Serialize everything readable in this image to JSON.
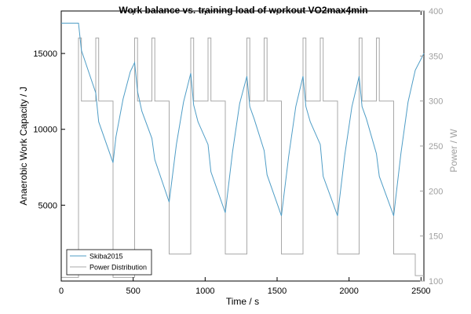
{
  "chart_data": {
    "type": "line",
    "title": "Work balance vs. training load of workout  VO2max4min",
    "xlabel": "Time / s",
    "ylabel_left": "Anaerobic Work Capacity / J",
    "ylabel_right": "Power / W",
    "xlim": [
      0,
      2520
    ],
    "ylim_left": [
      0,
      17800
    ],
    "ylim_right": [
      100,
      400
    ],
    "x_ticks": [
      0,
      500,
      1000,
      1500,
      2000,
      2500
    ],
    "x_tick_labels": [
      "0",
      "500",
      "1000",
      "1500",
      "2000",
      "2500"
    ],
    "y_left_ticks": [
      5000,
      10000,
      15000
    ],
    "y_left_tick_labels": [
      "5000",
      "10000",
      "15000"
    ],
    "y_right_ticks": [
      100,
      150,
      200,
      250,
      300,
      350,
      400
    ],
    "y_right_tick_labels": [
      "100",
      "150",
      "200",
      "250",
      "300",
      "350",
      "400"
    ],
    "grid": false,
    "legend_position": "bottom-left",
    "colors": {
      "skiba": "#4f9dc6",
      "power": "#a8a8a8",
      "right_axis": "#a0a0a0",
      "axis": "#000000"
    },
    "series": [
      {
        "name": "Skiba2015",
        "axis": "left",
        "x": [
          0,
          120,
          140,
          240,
          260,
          360,
          380,
          430,
          480,
          510,
          530,
          560,
          630,
          650,
          750,
          800,
          850,
          900,
          920,
          950,
          1020,
          1040,
          1140,
          1190,
          1240,
          1290,
          1310,
          1340,
          1410,
          1430,
          1530,
          1580,
          1630,
          1680,
          1700,
          1730,
          1800,
          1820,
          1920,
          1970,
          2020,
          2070,
          2090,
          2120,
          2190,
          2210,
          2310,
          2360,
          2410,
          2460,
          2520
        ],
        "y": [
          17000,
          17000,
          15200,
          12400,
          10500,
          7800,
          9500,
          12000,
          13800,
          14400,
          12500,
          11200,
          9400,
          8000,
          5200,
          9000,
          11800,
          13700,
          11600,
          10500,
          9000,
          7200,
          4500,
          8500,
          11700,
          13500,
          11500,
          10700,
          8600,
          7000,
          4300,
          8200,
          11500,
          13500,
          11500,
          10500,
          9000,
          6900,
          4300,
          8300,
          11500,
          13500,
          11500,
          10700,
          8400,
          6900,
          4300,
          8400,
          11800,
          13900,
          15000
        ]
      },
      {
        "name": "Power Distribution",
        "axis": "right",
        "step": true,
        "x": [
          0,
          120,
          140,
          240,
          260,
          360,
          510,
          530,
          630,
          650,
          750,
          900,
          920,
          1020,
          1040,
          1140,
          1290,
          1310,
          1410,
          1430,
          1530,
          1680,
          1700,
          1800,
          1820,
          1920,
          2070,
          2090,
          2190,
          2210,
          2310,
          2460,
          2520
        ],
        "y": [
          104,
          370,
          300,
          370,
          300,
          104,
          370,
          300,
          370,
          300,
          130,
          370,
          300,
          370,
          300,
          130,
          370,
          300,
          370,
          300,
          130,
          370,
          300,
          370,
          300,
          130,
          370,
          300,
          370,
          300,
          130,
          106,
          106
        ]
      }
    ]
  }
}
